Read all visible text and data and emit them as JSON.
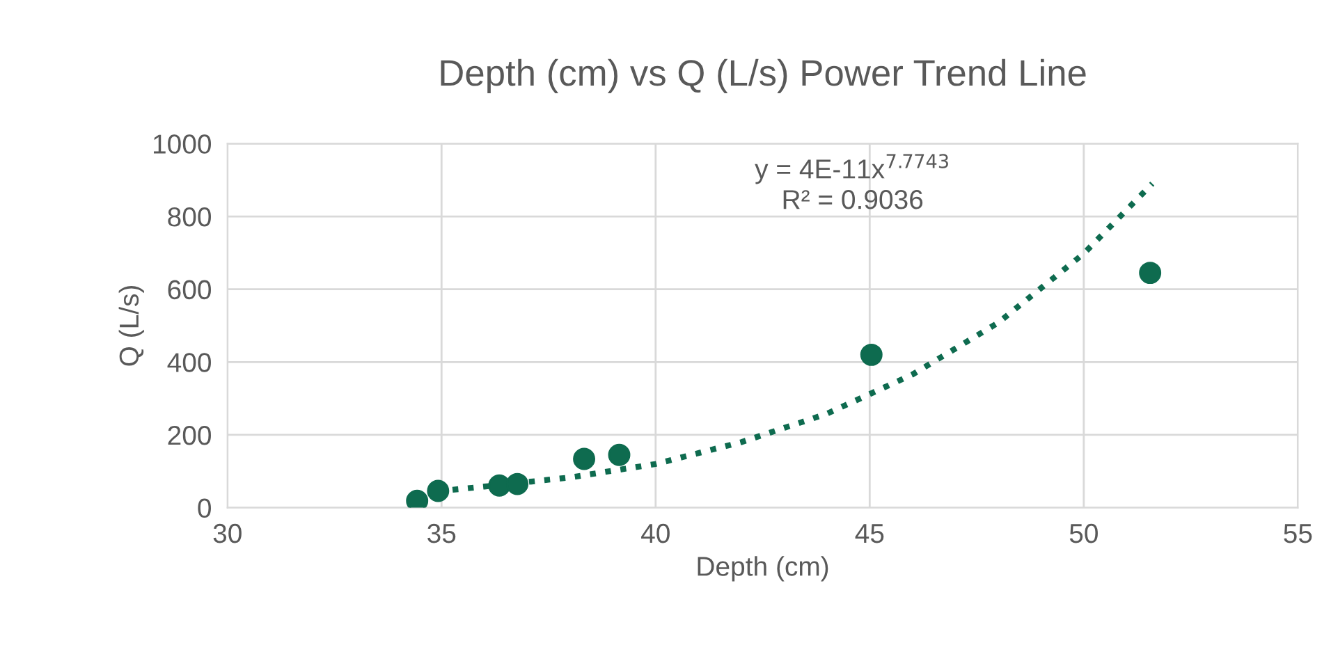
{
  "chart_data": {
    "type": "scatter",
    "title": "Depth (cm) vs Q (L/s) Power Trend Line",
    "xlabel": "Depth (cm)",
    "ylabel": "Q (L/s)",
    "series": [
      {
        "color": "#0e6b4f",
        "marker": "circle",
        "x": [
          34.43,
          34.92,
          36.35,
          36.77,
          38.33,
          39.15,
          45.04,
          51.55
        ],
        "values": [
          19,
          46,
          61,
          65,
          134,
          145,
          420,
          645
        ]
      },
      {
        "type": "line",
        "color": "#0e6b4f",
        "line_style": "dotted",
        "marker": "none",
        "x": [
          34.9,
          36,
          38,
          40,
          42,
          44,
          46,
          48,
          50,
          51.6
        ],
        "values": [
          45,
          58,
          83,
          120,
          180,
          258,
          366,
          508,
          698,
          890
        ]
      }
    ],
    "annotations": [
      "y = 4E-11x$^{7.7743}$",
      "R² = 0.9036"
    ],
    "xlim": [
      30,
      55
    ],
    "xticks": [
      30,
      35,
      40,
      45,
      50,
      55
    ],
    "ylim": [
      0,
      1000
    ],
    "yticks": [
      0,
      200,
      400,
      600,
      800,
      1000
    ],
    "grid": true,
    "legend": false
  }
}
